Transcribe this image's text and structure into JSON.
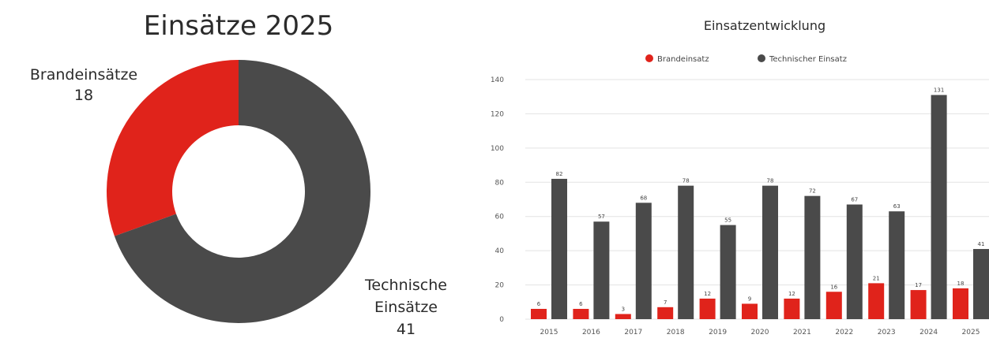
{
  "colors": {
    "brand": "#e0231b",
    "tech": "#4a4a4a",
    "grid": "#e3e3e3",
    "text": "#2b2b2b"
  },
  "chart_data": [
    {
      "type": "pie",
      "variant": "donut",
      "title": "Einsätze 2025",
      "slices": [
        {
          "label_line1": "Brandeinsätze",
          "label_line2": "",
          "value": 18,
          "value_text": "18",
          "color": "#e0231b"
        },
        {
          "label_line1": "Technische",
          "label_line2": "Einsätze",
          "value": 41,
          "value_text": "41",
          "color": "#4a4a4a"
        }
      ]
    },
    {
      "type": "bar",
      "title": "Einsatzentwicklung",
      "legend_position": "top-center",
      "categories": [
        "2015",
        "2016",
        "2017",
        "2018",
        "2019",
        "2020",
        "2021",
        "2022",
        "2023",
        "2024",
        "2025"
      ],
      "series": [
        {
          "name": "Brandeinsatz",
          "color": "#e0231b",
          "values": [
            6,
            6,
            3,
            7,
            12,
            9,
            12,
            16,
            21,
            17,
            18
          ]
        },
        {
          "name": "Technischer Einsatz",
          "color": "#4a4a4a",
          "values": [
            82,
            57,
            68,
            78,
            55,
            78,
            72,
            67,
            63,
            131,
            41
          ]
        }
      ],
      "ylim": [
        0,
        140
      ],
      "yticks": [
        0,
        20,
        40,
        60,
        80,
        100,
        120,
        140
      ],
      "grid": true
    }
  ]
}
